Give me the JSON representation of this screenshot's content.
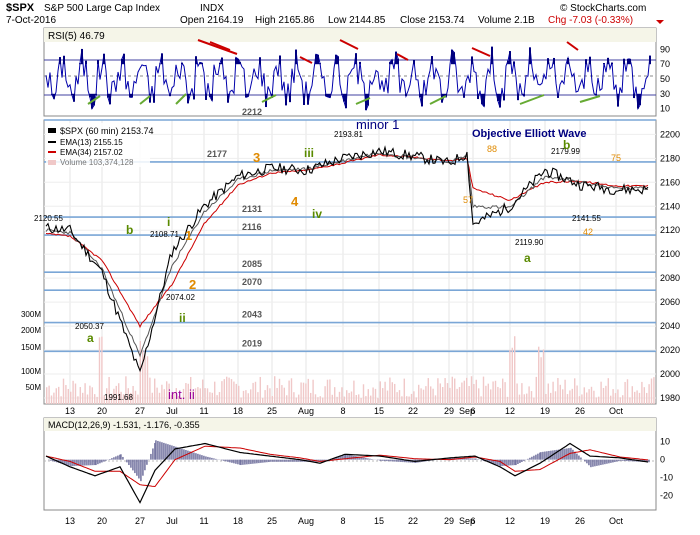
{
  "header": {
    "symbol": "$SPX",
    "name": "S&P 500 Large Cap Index",
    "exchange": "INDX",
    "date": "7-Oct-2016",
    "open": "Open 2164.19",
    "high": "High 2165.86",
    "low": "Low 2144.85",
    "close": "Close 2153.74",
    "volume": "Volume 2.1B",
    "change": "Chg -7.03 (-0.33%)",
    "watermark": "Objective Elliott Wave",
    "copyright": "© StockCharts.com"
  },
  "colors": {
    "accent_red": "#cc0000",
    "ema13": "#000000",
    "ema34": "#cc0000",
    "price_line": "#000000",
    "volume_bar": "#f0c8c8",
    "rsi_line": "#0000aa",
    "level_line": "#7aa6d6",
    "wave_orange": "#e08a00",
    "wave_green": "#5a8a00",
    "wave_navy": "#000080",
    "wave_purple": "#990099",
    "panel_bg": "#f5f5e8",
    "grid": "#e0e0e0"
  },
  "rsi_panel": {
    "title": "RSI(5) 46.79",
    "ticks": [
      "90",
      "70",
      "50",
      "30",
      "10"
    ]
  },
  "price_panel": {
    "legend_title": "$SPX (60 min) 2153.74",
    "ema13_label": "EMA(13) 2155.15",
    "ema34_label": "EMA(34) 2157.02",
    "volume_label": "Volume 103,374,128",
    "y_ticks": [
      "2200",
      "2180",
      "2160",
      "2140",
      "2120",
      "2100",
      "2080",
      "2060",
      "2040",
      "2020",
      "2000",
      "1980"
    ],
    "vol_ticks": [
      "300M",
      "200M",
      "150M",
      "100M",
      "50M"
    ]
  },
  "macd_panel": {
    "title": "MACD(12,26,9) -1.531, -1.176, -0.355",
    "y_ticks": [
      "10",
      "0",
      "-10",
      "-20"
    ]
  },
  "x_axis": {
    "labels": [
      "13",
      "20",
      "27",
      "Jul",
      "11",
      "18",
      "25",
      "Aug",
      "8",
      "15",
      "22",
      "29",
      "Sep",
      "6",
      "12",
      "19",
      "26",
      "Oct"
    ]
  },
  "levels": [
    "2212",
    "2177",
    "2131",
    "2116",
    "2085",
    "2070",
    "2043",
    "2019"
  ],
  "annotations": {
    "price_labels": [
      "2120.55",
      "2050.37",
      "2108.71",
      "2074.02",
      "1991.68",
      "2193.81",
      "2119.90",
      "2179.99",
      "2141.55"
    ],
    "wave_labels": [
      "a",
      "b",
      "i",
      "ii",
      "1",
      "2",
      "3",
      "4",
      "iii",
      "iv",
      "minor 1",
      "88",
      "57",
      "a",
      "b",
      "42",
      "75",
      "int. ii"
    ]
  },
  "chart_data": {
    "type": "line",
    "title": "$SPX (60 min) 2153.74",
    "x": [
      "Jun 13",
      "Jun 20",
      "Jun 27",
      "Jul 1",
      "Jul 11",
      "Jul 18",
      "Jul 25",
      "Aug 1",
      "Aug 8",
      "Aug 15",
      "Aug 22",
      "Aug 29",
      "Sep 6",
      "Sep 12",
      "Sep 19",
      "Sep 26",
      "Oct 3",
      "Oct 7"
    ],
    "series": [
      {
        "name": "$SPX (60 min) 2153.74",
        "values": [
          2120,
          2085,
          2000,
          2102,
          2140,
          2165,
          2172,
          2170,
          2180,
          2186,
          2182,
          2176,
          2184,
          2125,
          2140,
          2170,
          2158,
          2154
        ]
      },
      {
        "name": "EMA(13) 2155.15",
        "values": [
          2118,
          2088,
          2015,
          2090,
          2135,
          2162,
          2170,
          2171,
          2178,
          2185,
          2181,
          2177,
          2182,
          2140,
          2139,
          2165,
          2160,
          2155
        ]
      },
      {
        "name": "EMA(34) 2157.02",
        "values": [
          2115,
          2095,
          2040,
          2075,
          2125,
          2158,
          2168,
          2170,
          2176,
          2183,
          2181,
          2178,
          2180,
          2155,
          2145,
          2160,
          2161,
          2157
        ]
      }
    ],
    "ylim": [
      1975,
      2212
    ],
    "y_scale": "linear",
    "grid": true,
    "legend_placement": "top-left"
  }
}
